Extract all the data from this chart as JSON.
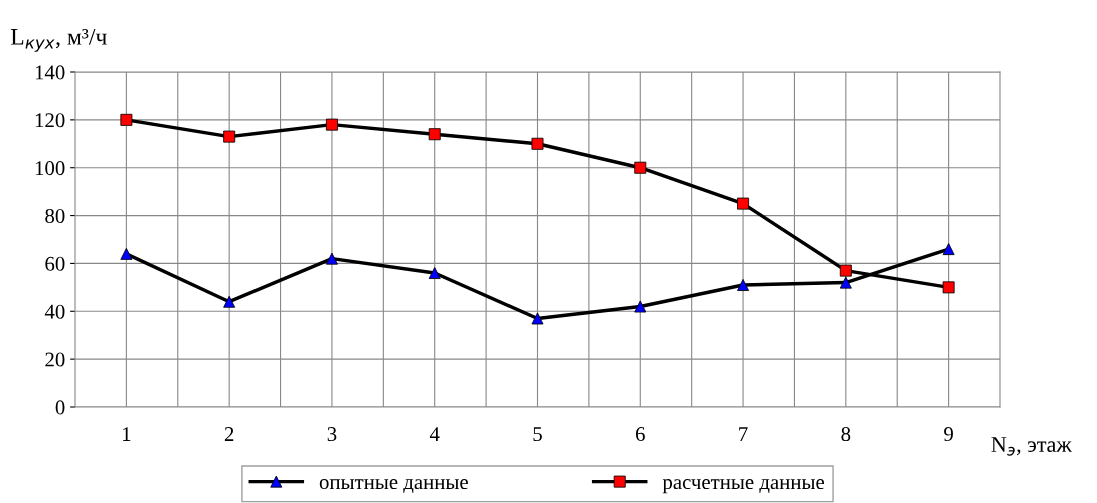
{
  "chart_data": {
    "type": "line",
    "ylabel": "L$_{кух}$, м³/ч",
    "xlabel": "N$_{э}$, этаж",
    "categories": [
      "1",
      "2",
      "3",
      "4",
      "5",
      "6",
      "7",
      "8",
      "9"
    ],
    "series": [
      {
        "name": "опытные данные",
        "color": "#0000ff",
        "marker": "triangle",
        "values": [
          64,
          44,
          62,
          56,
          37,
          42,
          51,
          52,
          66
        ]
      },
      {
        "name": "расчетные данные",
        "color": "#ff0000",
        "marker": "square",
        "values": [
          120,
          113,
          118,
          114,
          110,
          100,
          85,
          57,
          50
        ]
      }
    ],
    "ylim": [
      0,
      140
    ],
    "yticks": [
      0,
      20,
      40,
      60,
      80,
      100,
      120,
      140
    ],
    "grid": true,
    "legend": "bottom",
    "line_style": "solid"
  }
}
